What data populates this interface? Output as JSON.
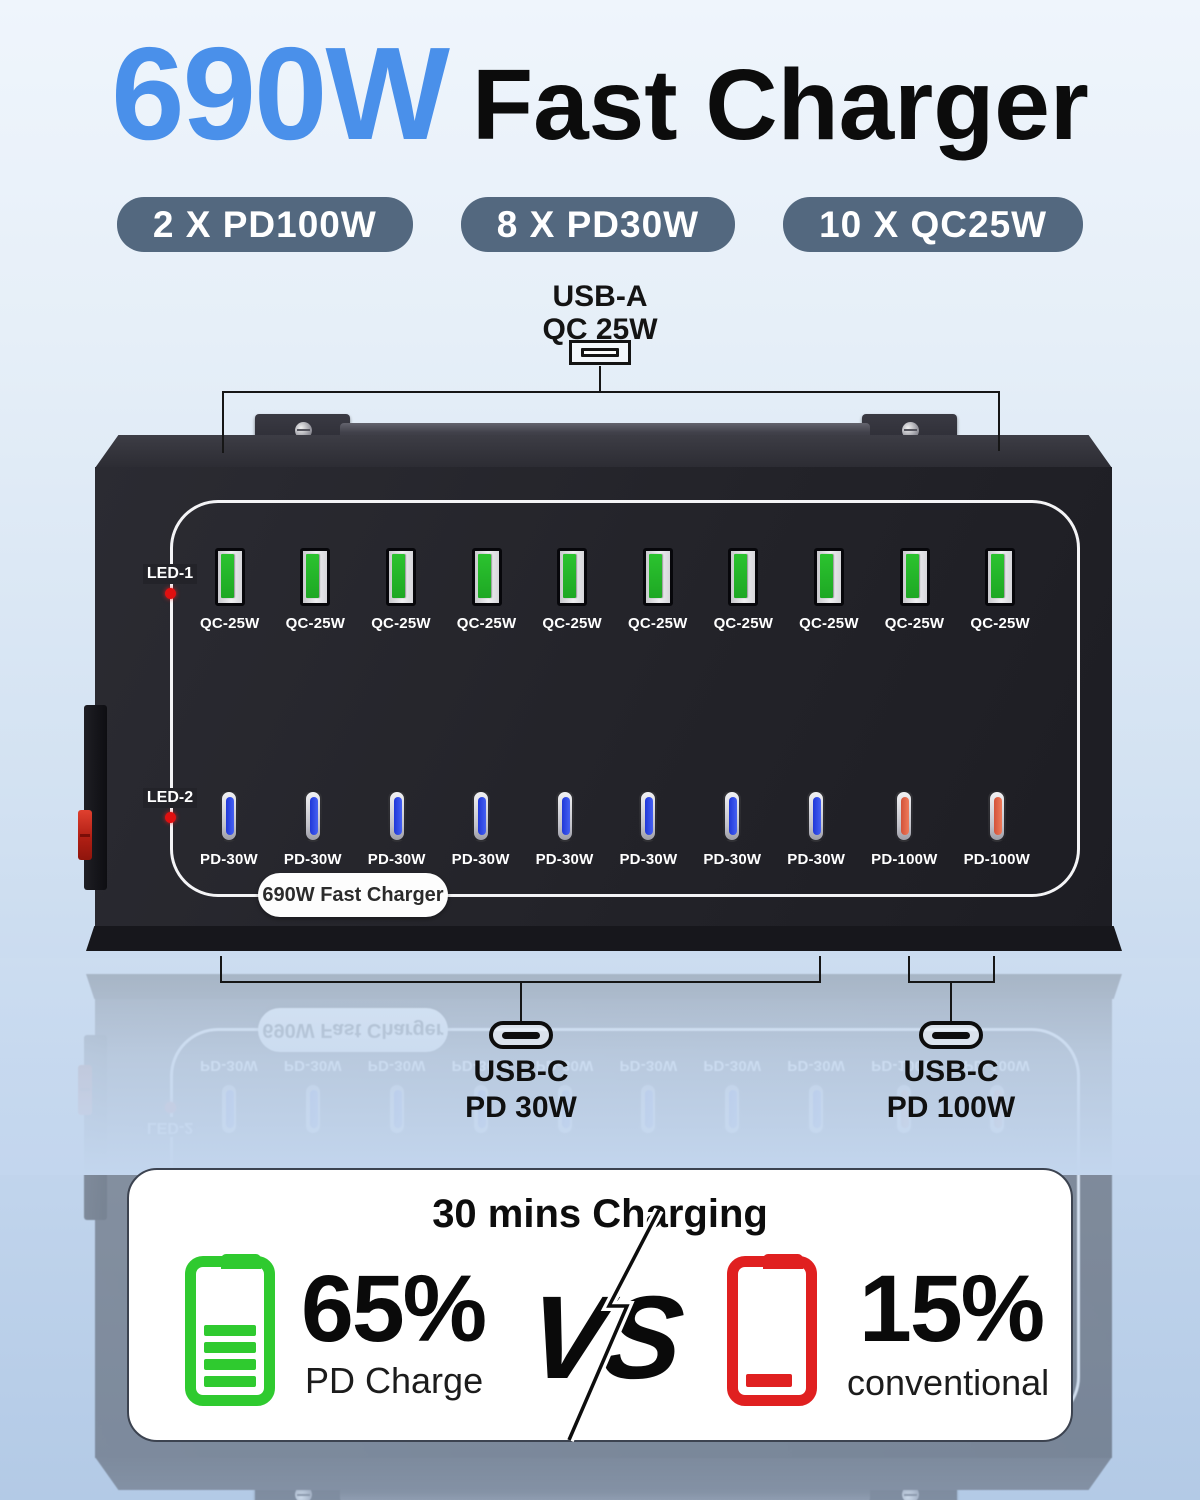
{
  "page": {
    "title": {
      "wattage": "690W",
      "name": "Fast Charger"
    },
    "badges": [
      {
        "label": "2 X PD100W"
      },
      {
        "label": "8 X PD30W"
      },
      {
        "label": "10 X QC25W"
      }
    ]
  },
  "top_callout": {
    "port_type": "USB-A",
    "power": "QC 25W"
  },
  "device": {
    "led1_label": "LED-1",
    "led2_label": "LED-2",
    "nameplate": "690W Fast Charger",
    "usba_ports": [
      {
        "label": "QC-25W"
      },
      {
        "label": "QC-25W"
      },
      {
        "label": "QC-25W"
      },
      {
        "label": "QC-25W"
      },
      {
        "label": "QC-25W"
      },
      {
        "label": "QC-25W"
      },
      {
        "label": "QC-25W"
      },
      {
        "label": "QC-25W"
      },
      {
        "label": "QC-25W"
      },
      {
        "label": "QC-25W"
      }
    ],
    "usbc_ports": [
      {
        "label": "PD-30W",
        "color": "blue"
      },
      {
        "label": "PD-30W",
        "color": "blue"
      },
      {
        "label": "PD-30W",
        "color": "blue"
      },
      {
        "label": "PD-30W",
        "color": "blue"
      },
      {
        "label": "PD-30W",
        "color": "blue"
      },
      {
        "label": "PD-30W",
        "color": "blue"
      },
      {
        "label": "PD-30W",
        "color": "blue"
      },
      {
        "label": "PD-30W",
        "color": "blue"
      },
      {
        "label": "PD-100W",
        "color": "orange"
      },
      {
        "label": "PD-100W",
        "color": "orange"
      }
    ]
  },
  "bottom_callouts": {
    "pd30": {
      "port_type": "USB-C",
      "power": "PD 30W"
    },
    "pd100": {
      "port_type": "USB-C",
      "power": "PD 100W"
    }
  },
  "comparison": {
    "title": "30 mins Charging",
    "fast": {
      "percent": "65%",
      "label": "PD Charge"
    },
    "versus": "VS",
    "slow": {
      "percent": "15%",
      "label": "conventional"
    }
  },
  "colors": {
    "title_blue": "#4a90ea",
    "badge_bg": "#53687f",
    "usba_green": "#2bc32f",
    "usbc_blue": "#4560f2",
    "usbc_orange": "#ef7a5a",
    "led_red": "#e01010",
    "battery_green": "#2fca2f",
    "battery_red": "#e02020"
  }
}
